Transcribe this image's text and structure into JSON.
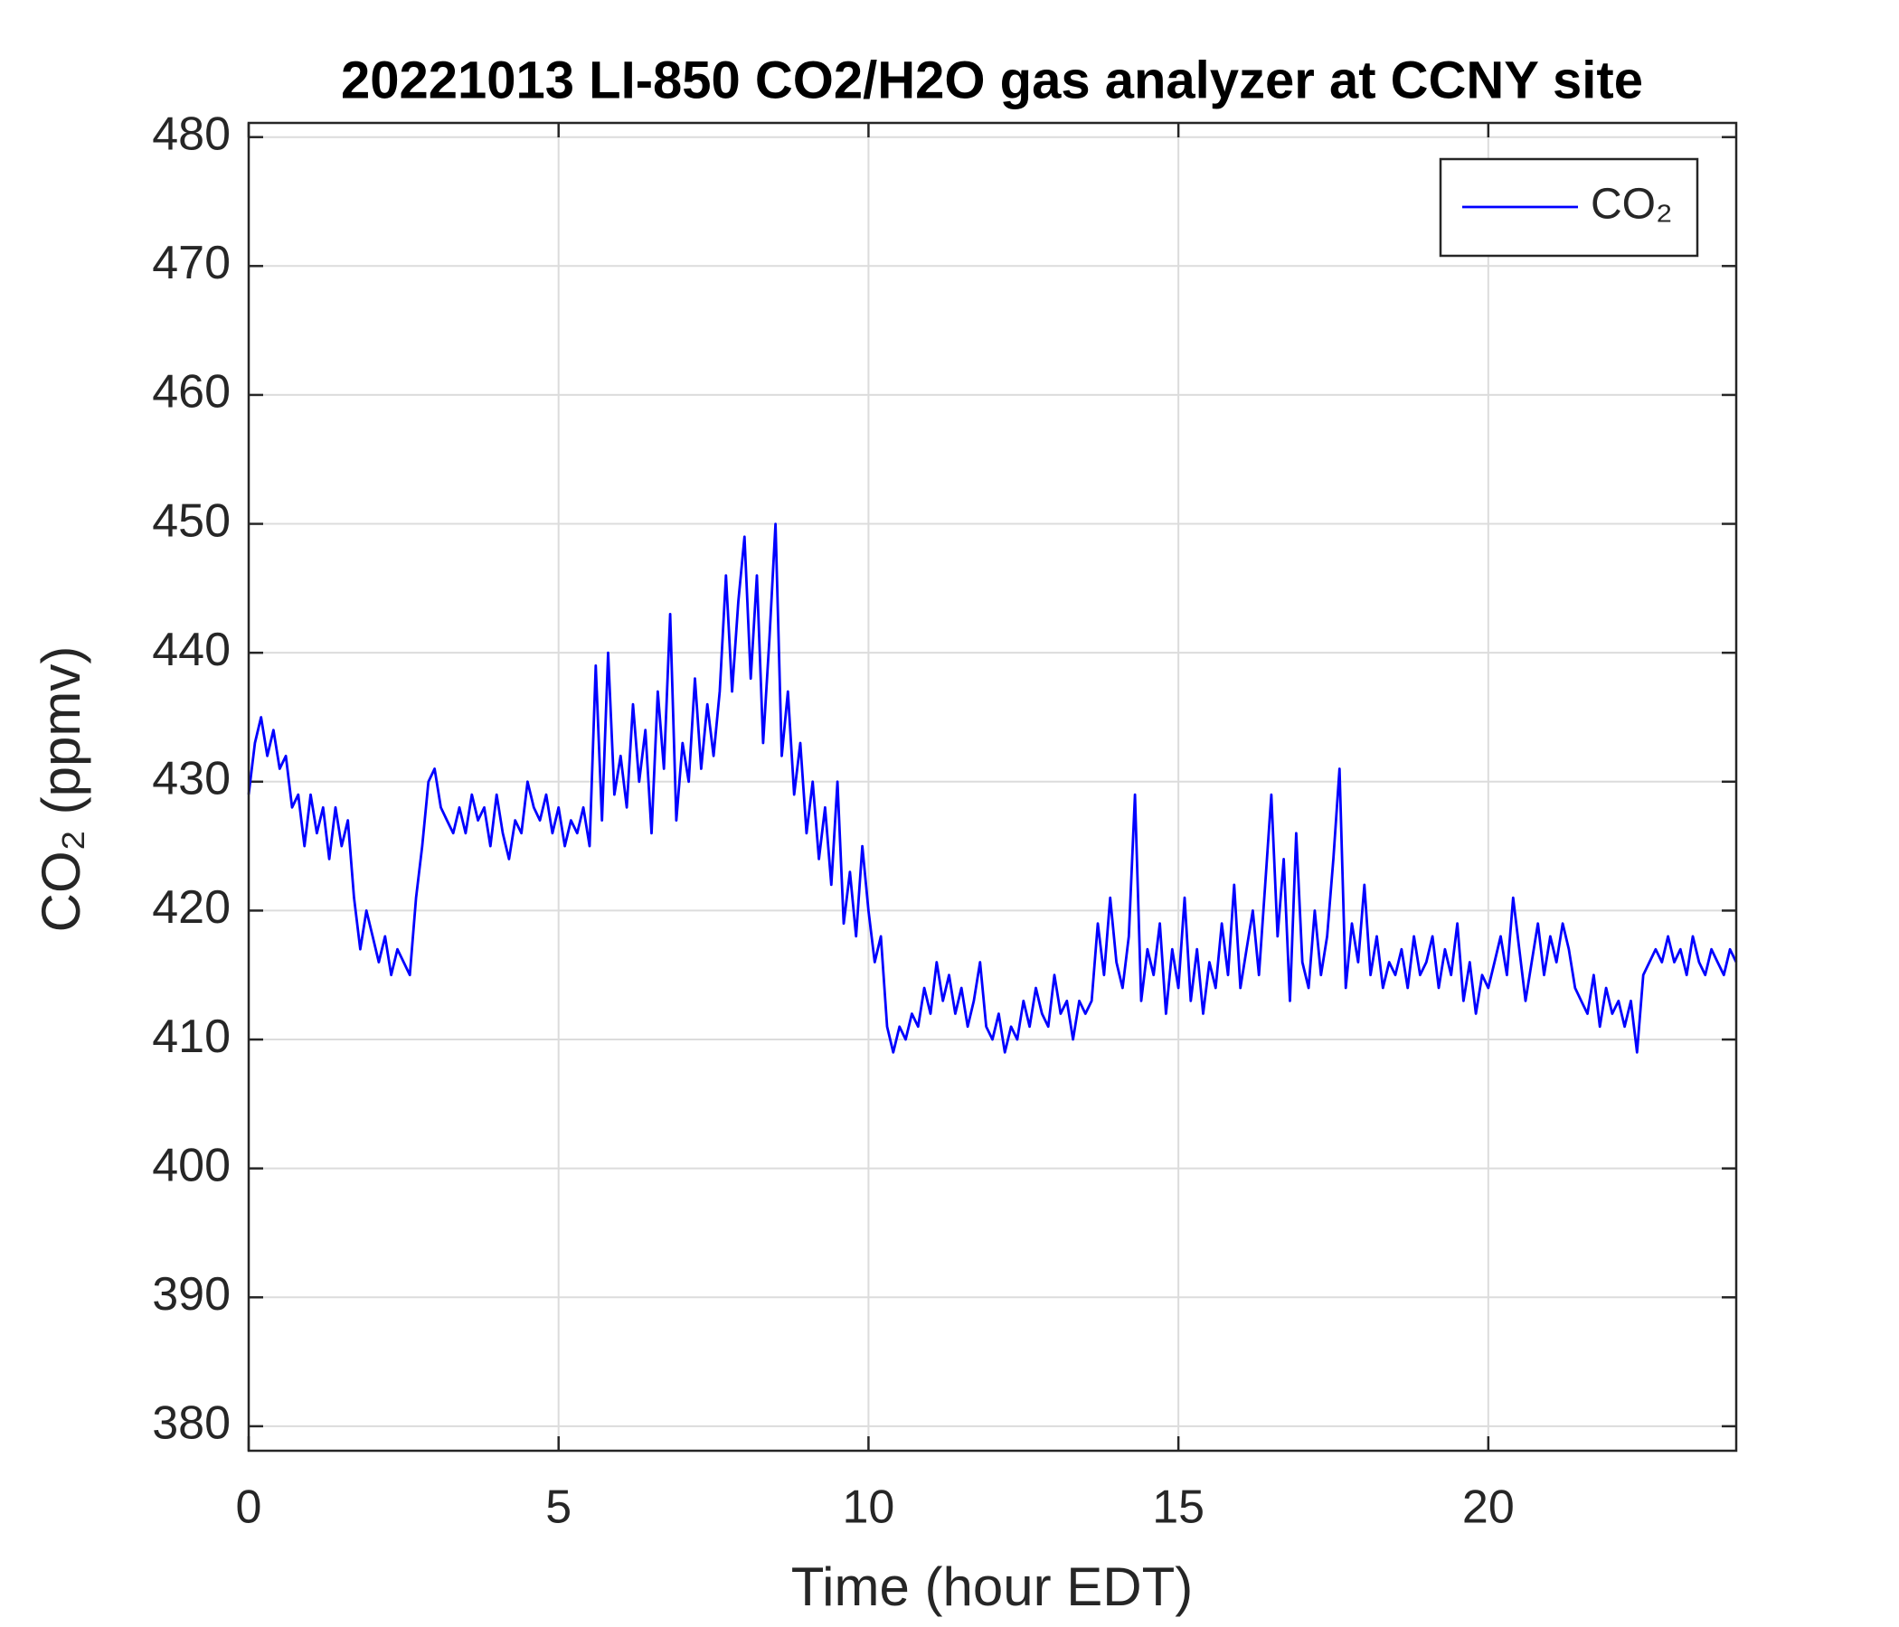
{
  "chart_data": {
    "type": "line",
    "title": "20221013 LI-850 CO2/H2O gas analyzer at CCNY site",
    "x_label": "Time (hour EDT)",
    "y_label": "CO₂ (ppmv)",
    "x": [
      0,
      0.1,
      0.2,
      0.3,
      0.4,
      0.5,
      0.6,
      0.7,
      0.8,
      0.9,
      1,
      1.1,
      1.2,
      1.3,
      1.4,
      1.5,
      1.6,
      1.7,
      1.8,
      1.9,
      2,
      2.1,
      2.2,
      2.3,
      2.4,
      2.5,
      2.6,
      2.7,
      2.8,
      2.9,
      3,
      3.1,
      3.2,
      3.3,
      3.4,
      3.5,
      3.6,
      3.7,
      3.8,
      3.9,
      4,
      4.1,
      4.2,
      4.3,
      4.4,
      4.5,
      4.6,
      4.7,
      4.8,
      4.9,
      5,
      5.1,
      5.2,
      5.3,
      5.4,
      5.5,
      5.6,
      5.7,
      5.8,
      5.9,
      6,
      6.1,
      6.2,
      6.3,
      6.4,
      6.5,
      6.6,
      6.7,
      6.8,
      6.9,
      7,
      7.1,
      7.2,
      7.3,
      7.4,
      7.5,
      7.6,
      7.7,
      7.8,
      7.9,
      8,
      8.1,
      8.2,
      8.3,
      8.4,
      8.5,
      8.6,
      8.7,
      8.8,
      8.9,
      9,
      9.1,
      9.2,
      9.3,
      9.4,
      9.5,
      9.6,
      9.7,
      9.8,
      9.9,
      10,
      10.1,
      10.2,
      10.3,
      10.4,
      10.5,
      10.6,
      10.7,
      10.8,
      10.9,
      11,
      11.1,
      11.2,
      11.3,
      11.4,
      11.5,
      11.6,
      11.7,
      11.8,
      11.9,
      12,
      12.1,
      12.2,
      12.3,
      12.4,
      12.5,
      12.6,
      12.7,
      12.8,
      12.9,
      13,
      13.1,
      13.2,
      13.3,
      13.4,
      13.5,
      13.6,
      13.7,
      13.8,
      13.9,
      14,
      14.1,
      14.2,
      14.3,
      14.4,
      14.5,
      14.6,
      14.7,
      14.8,
      14.9,
      15,
      15.1,
      15.2,
      15.3,
      15.4,
      15.5,
      15.6,
      15.7,
      15.8,
      15.9,
      16,
      16.1,
      16.2,
      16.3,
      16.4,
      16.5,
      16.6,
      16.7,
      16.8,
      16.9,
      17,
      17.1,
      17.2,
      17.3,
      17.4,
      17.5,
      17.6,
      17.7,
      17.8,
      17.9,
      18,
      18.1,
      18.2,
      18.3,
      18.4,
      18.5,
      18.6,
      18.7,
      18.8,
      18.9,
      19,
      19.1,
      19.2,
      19.3,
      19.4,
      19.5,
      19.6,
      19.7,
      19.8,
      19.9,
      20,
      20.1,
      20.2,
      20.3,
      20.4,
      20.5,
      20.6,
      20.7,
      20.8,
      20.9,
      21,
      21.1,
      21.2,
      21.3,
      21.4,
      21.5,
      21.6,
      21.7,
      21.8,
      21.9,
      22,
      22.1,
      22.2,
      22.3,
      22.4,
      22.5,
      22.6,
      22.7,
      22.8,
      22.9,
      23,
      23.1,
      23.2,
      23.3,
      23.4,
      23.5,
      23.6,
      23.7,
      23.8,
      23.9,
      24
    ],
    "series": [
      {
        "name": "CO₂",
        "color": "#0000ff",
        "values": [
          429,
          433,
          435,
          432,
          434,
          431,
          432,
          428,
          429,
          425,
          429,
          426,
          428,
          424,
          428,
          425,
          427,
          421,
          417,
          420,
          418,
          416,
          418,
          415,
          417,
          416,
          415,
          421,
          425,
          430,
          431,
          428,
          427,
          426,
          428,
          426,
          429,
          427,
          428,
          425,
          429,
          426,
          424,
          427,
          426,
          430,
          428,
          427,
          429,
          426,
          428,
          425,
          427,
          426,
          428,
          425,
          439,
          427,
          440,
          429,
          432,
          428,
          436,
          430,
          434,
          426,
          437,
          431,
          443,
          427,
          433,
          430,
          438,
          431,
          436,
          432,
          437,
          446,
          437,
          444,
          449,
          438,
          446,
          433,
          441,
          450,
          432,
          437,
          429,
          433,
          426,
          430,
          424,
          428,
          422,
          430,
          419,
          423,
          418,
          425,
          420,
          416,
          418,
          411,
          409,
          411,
          410,
          412,
          411,
          414,
          412,
          416,
          413,
          415,
          412,
          414,
          411,
          413,
          416,
          411,
          410,
          412,
          409,
          411,
          410,
          413,
          411,
          414,
          412,
          411,
          415,
          412,
          413,
          410,
          413,
          412,
          413,
          419,
          415,
          421,
          416,
          414,
          418,
          429,
          413,
          417,
          415,
          419,
          412,
          417,
          414,
          421,
          413,
          417,
          412,
          416,
          414,
          419,
          415,
          422,
          414,
          417,
          420,
          415,
          422,
          429,
          418,
          424,
          413,
          426,
          416,
          414,
          420,
          415,
          418,
          424,
          431,
          414,
          419,
          416,
          422,
          415,
          418,
          414,
          416,
          415,
          417,
          414,
          418,
          415,
          416,
          418,
          414,
          417,
          415,
          419,
          413,
          416,
          412,
          415,
          414,
          416,
          418,
          415,
          421,
          417,
          413,
          416,
          419,
          415,
          418,
          416,
          419,
          417,
          414,
          413,
          412,
          415,
          411,
          414,
          412,
          413,
          411,
          413,
          409,
          415,
          416,
          417,
          416,
          418,
          416,
          417,
          415,
          418,
          416,
          415,
          417,
          416,
          415,
          417,
          416
        ]
      }
    ],
    "xlim": [
      0,
      24
    ],
    "xticks": [
      0,
      5,
      10,
      15,
      20
    ],
    "ylim": [
      378.1,
      481.1
    ],
    "yticks": [
      380,
      390,
      400,
      410,
      420,
      430,
      440,
      450,
      460,
      470,
      480
    ],
    "grid": true,
    "legend": "upper right"
  }
}
